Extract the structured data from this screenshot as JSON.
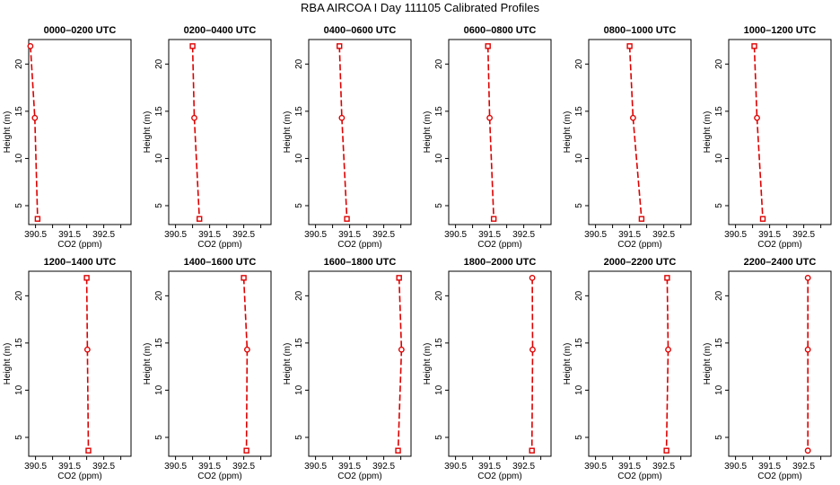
{
  "suptitle": "RBA AIRCOA I  Day 111105  Calibrated Profiles",
  "xlabel": "CO2 (ppm)",
  "ylabel": "Height (m)",
  "colors": {
    "profile": "#dd0000"
  },
  "chart_data": [
    {
      "type": "line",
      "title": "0000–0200 UTC",
      "xlim": [
        390.3,
        393.3
      ],
      "ylim": [
        3,
        22.6
      ],
      "xticks": [
        "390.5",
        "391.5",
        "392.5"
      ],
      "yticks": [
        "5",
        "10",
        "15",
        "20"
      ],
      "series": [
        {
          "x": [
            390.35,
            390.48,
            390.56
          ],
          "y": [
            21.9,
            14.3,
            3.6
          ],
          "markers": [
            "open-circle",
            "open-circle",
            "open-square"
          ]
        }
      ]
    },
    {
      "type": "line",
      "title": "0200–0400 UTC",
      "xlim": [
        390.3,
        393.3
      ],
      "ylim": [
        3,
        22.6
      ],
      "xticks": [
        "390.5",
        "391.5",
        "392.5"
      ],
      "yticks": [
        "5",
        "10",
        "15",
        "20"
      ],
      "series": [
        {
          "x": [
            391.0,
            391.05,
            391.2
          ],
          "y": [
            21.9,
            14.3,
            3.6
          ],
          "markers": [
            "open-square",
            "open-circle",
            "open-square"
          ]
        }
      ]
    },
    {
      "type": "line",
      "title": "0400–0600 UTC",
      "xlim": [
        390.3,
        393.3
      ],
      "ylim": [
        3,
        22.6
      ],
      "xticks": [
        "390.5",
        "391.5",
        "392.5"
      ],
      "yticks": [
        "5",
        "10",
        "15",
        "20"
      ],
      "series": [
        {
          "x": [
            391.2,
            391.27,
            391.42
          ],
          "y": [
            21.9,
            14.3,
            3.6
          ],
          "markers": [
            "open-square",
            "open-circle",
            "open-square"
          ]
        }
      ]
    },
    {
      "type": "line",
      "title": "0600–0800 UTC",
      "xlim": [
        390.3,
        393.3
      ],
      "ylim": [
        3,
        22.6
      ],
      "xticks": [
        "390.5",
        "391.5",
        "392.5"
      ],
      "yticks": [
        "5",
        "10",
        "15",
        "20"
      ],
      "series": [
        {
          "x": [
            391.45,
            391.5,
            391.62
          ],
          "y": [
            21.9,
            14.3,
            3.6
          ],
          "markers": [
            "open-square",
            "open-circle",
            "open-square"
          ]
        }
      ]
    },
    {
      "type": "line",
      "title": "0800–1000 UTC",
      "xlim": [
        390.3,
        393.3
      ],
      "ylim": [
        3,
        22.6
      ],
      "xticks": [
        "390.5",
        "391.5",
        "392.5"
      ],
      "yticks": [
        "5",
        "10",
        "15",
        "20"
      ],
      "series": [
        {
          "x": [
            391.5,
            391.6,
            391.85
          ],
          "y": [
            21.9,
            14.3,
            3.6
          ],
          "markers": [
            "open-square",
            "open-circle",
            "open-square"
          ]
        }
      ]
    },
    {
      "type": "line",
      "title": "1000–1200 UTC",
      "xlim": [
        390.3,
        393.3
      ],
      "ylim": [
        3,
        22.6
      ],
      "xticks": [
        "390.5",
        "391.5",
        "392.5"
      ],
      "yticks": [
        "5",
        "10",
        "15",
        "20"
      ],
      "series": [
        {
          "x": [
            391.05,
            391.13,
            391.3
          ],
          "y": [
            21.9,
            14.3,
            3.6
          ],
          "markers": [
            "open-square",
            "open-circle",
            "open-square"
          ]
        }
      ]
    },
    {
      "type": "line",
      "title": "1200–1400 UTC",
      "xlim": [
        390.3,
        393.3
      ],
      "ylim": [
        3,
        22.6
      ],
      "xticks": [
        "390.5",
        "391.5",
        "392.5"
      ],
      "yticks": [
        "5",
        "10",
        "15",
        "20"
      ],
      "series": [
        {
          "x": [
            392.0,
            392.02,
            392.05
          ],
          "y": [
            21.9,
            14.3,
            3.6
          ],
          "markers": [
            "open-square",
            "open-circle",
            "open-square"
          ]
        }
      ]
    },
    {
      "type": "line",
      "title": "1400–1600 UTC",
      "xlim": [
        390.3,
        393.3
      ],
      "ylim": [
        3,
        22.6
      ],
      "xticks": [
        "390.5",
        "391.5",
        "392.5"
      ],
      "yticks": [
        "5",
        "10",
        "15",
        "20"
      ],
      "series": [
        {
          "x": [
            392.5,
            392.6,
            392.58
          ],
          "y": [
            21.9,
            14.3,
            3.6
          ],
          "markers": [
            "open-square",
            "open-circle",
            "open-square"
          ]
        }
      ]
    },
    {
      "type": "line",
      "title": "1600–1800 UTC",
      "xlim": [
        390.3,
        393.3
      ],
      "ylim": [
        3,
        22.6
      ],
      "xticks": [
        "390.5",
        "391.5",
        "392.5"
      ],
      "yticks": [
        "5",
        "10",
        "15",
        "20"
      ],
      "series": [
        {
          "x": [
            392.95,
            393.02,
            392.92
          ],
          "y": [
            21.9,
            14.3,
            3.6
          ],
          "markers": [
            "open-square",
            "open-circle",
            "open-square"
          ]
        }
      ]
    },
    {
      "type": "line",
      "title": "1800–2000 UTC",
      "xlim": [
        390.3,
        393.3
      ],
      "ylim": [
        3,
        22.6
      ],
      "xticks": [
        "390.5",
        "391.5",
        "392.5"
      ],
      "yticks": [
        "5",
        "10",
        "15",
        "20"
      ],
      "series": [
        {
          "x": [
            392.75,
            392.76,
            392.74
          ],
          "y": [
            21.9,
            14.3,
            3.6
          ],
          "markers": [
            "open-circle",
            "open-circle",
            "open-square"
          ]
        }
      ]
    },
    {
      "type": "line",
      "title": "2000–2200 UTC",
      "xlim": [
        390.3,
        393.3
      ],
      "ylim": [
        3,
        22.6
      ],
      "xticks": [
        "390.5",
        "391.5",
        "392.5"
      ],
      "yticks": [
        "5",
        "10",
        "15",
        "20"
      ],
      "series": [
        {
          "x": [
            392.6,
            392.63,
            392.58
          ],
          "y": [
            21.9,
            14.3,
            3.6
          ],
          "markers": [
            "open-square",
            "open-circle",
            "open-square"
          ]
        }
      ]
    },
    {
      "type": "line",
      "title": "2200–2400 UTC",
      "xlim": [
        390.3,
        393.3
      ],
      "ylim": [
        3,
        22.6
      ],
      "xticks": [
        "390.5",
        "391.5",
        "392.5"
      ],
      "yticks": [
        "5",
        "10",
        "15",
        "20"
      ],
      "series": [
        {
          "x": [
            392.62,
            392.62,
            392.62
          ],
          "y": [
            21.9,
            14.3,
            3.6
          ],
          "markers": [
            "open-circle",
            "open-circle",
            "open-circle"
          ]
        }
      ]
    }
  ]
}
